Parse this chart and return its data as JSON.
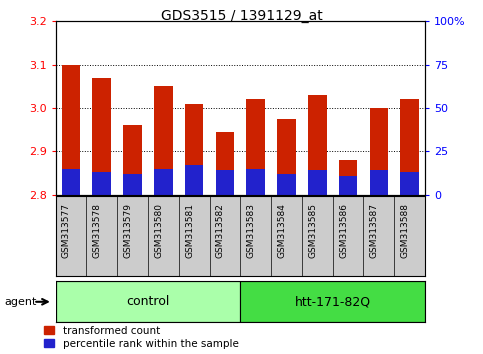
{
  "title": "GDS3515 / 1391129_at",
  "samples": [
    "GSM313577",
    "GSM313578",
    "GSM313579",
    "GSM313580",
    "GSM313581",
    "GSM313582",
    "GSM313583",
    "GSM313584",
    "GSM313585",
    "GSM313586",
    "GSM313587",
    "GSM313588"
  ],
  "transformed_count": [
    3.1,
    3.07,
    2.96,
    3.05,
    3.01,
    2.945,
    3.02,
    2.975,
    3.03,
    2.88,
    3.0,
    3.02
  ],
  "percentile_rank": [
    15,
    13,
    12,
    15,
    17,
    14,
    15,
    12,
    14,
    11,
    14,
    13
  ],
  "ymin": 2.8,
  "ymax": 3.2,
  "yticks": [
    2.8,
    2.9,
    3.0,
    3.1,
    3.2
  ],
  "right_yticks": [
    0,
    25,
    50,
    75,
    100
  ],
  "right_yticklabels": [
    "0",
    "25",
    "50",
    "75",
    "100%"
  ],
  "bar_color_red": "#cc2200",
  "bar_color_blue": "#2222cc",
  "bar_width": 0.6,
  "groups": [
    {
      "label": "control",
      "indices": [
        0,
        1,
        2,
        3,
        4,
        5
      ],
      "color": "#aaffaa"
    },
    {
      "label": "htt-171-82Q",
      "indices": [
        6,
        7,
        8,
        9,
        10,
        11
      ],
      "color": "#44dd44"
    }
  ],
  "agent_label": "agent",
  "bar_color_red_hex": "#cc2200",
  "bar_color_blue_hex": "#2222cc",
  "tick_label_area_color": "#cccccc",
  "grid_linestyle": "dotted",
  "legend_items": [
    {
      "label": "transformed count",
      "color": "#cc2200"
    },
    {
      "label": "percentile rank within the sample",
      "color": "#2222cc"
    }
  ]
}
